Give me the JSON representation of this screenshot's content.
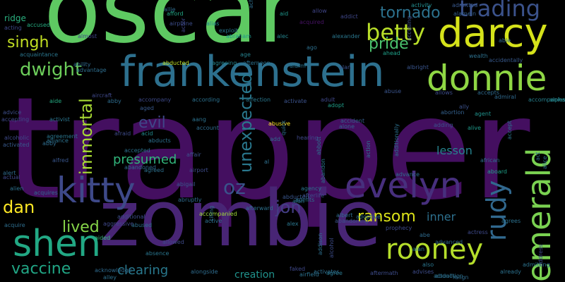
{
  "cloud": {
    "words": [
      {
        "text": "trapper",
        "color": "#440f60"
      },
      {
        "text": "oscar",
        "color": "#5ec962"
      },
      {
        "text": "zombie",
        "color": "#482575"
      },
      {
        "text": "frankenstein",
        "color": "#2d708e"
      },
      {
        "text": "darcy",
        "color": "#d5e21a"
      },
      {
        "text": "donnie",
        "color": "#8fd744"
      },
      {
        "text": "kitty",
        "color": "#3e4989"
      },
      {
        "text": "evelyn",
        "color": "#472f7d"
      },
      {
        "text": "shen",
        "color": "#22a884"
      },
      {
        "text": "emerald",
        "color": "#7ad151"
      },
      {
        "text": "rooney",
        "color": "#b5de2b"
      },
      {
        "text": "rudy",
        "color": "#31688e"
      },
      {
        "text": "betty",
        "color": "#b8de29"
      },
      {
        "text": "trading",
        "color": "#3b528b"
      },
      {
        "text": "tornado",
        "color": "#2c728e"
      },
      {
        "text": "pride",
        "color": "#4ac16d"
      },
      {
        "text": "dwight",
        "color": "#6ccd5a"
      },
      {
        "text": "singh",
        "color": "#c2df23"
      },
      {
        "text": "immortal",
        "color": "#a8db34"
      },
      {
        "text": "unexpected",
        "color": "#2a788e"
      },
      {
        "text": "evil",
        "color": "#404688"
      },
      {
        "text": "oz",
        "color": "#3a548c"
      },
      {
        "text": "jon",
        "color": "#433e85"
      },
      {
        "text": "ransom",
        "color": "#dce319"
      },
      {
        "text": "dan",
        "color": "#fde725"
      },
      {
        "text": "lived",
        "color": "#86d549"
      },
      {
        "text": "vaccine",
        "color": "#21a685"
      },
      {
        "text": "presumed",
        "color": "#31b57b"
      },
      {
        "text": "lesson",
        "color": "#26828e"
      },
      {
        "text": "inner",
        "color": "#2d708e"
      },
      {
        "text": "clearing",
        "color": "#29798e"
      },
      {
        "text": "creation",
        "color": "#20928c"
      },
      {
        "text": "ridge",
        "color": "#2ab07f"
      },
      {
        "text": "allow",
        "color": "#404588"
      },
      {
        "text": "allie",
        "color": "#2f6c8e"
      },
      {
        "text": "activity",
        "color": "#228c8d"
      },
      {
        "text": "admitted",
        "color": "#38588c"
      },
      {
        "text": "alamein",
        "color": "#355f8d"
      },
      {
        "text": "aid",
        "color": "#1f968b"
      },
      {
        "text": "acting",
        "color": "#3e4a89"
      },
      {
        "text": "accused",
        "color": "#26ad81"
      },
      {
        "text": "airplane",
        "color": "#3d4d8a"
      },
      {
        "text": "afford",
        "color": "#22a785"
      },
      {
        "text": "alias",
        "color": "#24868e"
      },
      {
        "text": "exploit",
        "color": "#2a768e"
      },
      {
        "text": "abraham",
        "color": "#1f988b"
      },
      {
        "text": "alec",
        "color": "#25858e"
      },
      {
        "text": "acquired",
        "color": "#471365"
      },
      {
        "text": "addict",
        "color": "#3f4788"
      },
      {
        "text": "alexander",
        "color": "#2a778e"
      },
      {
        "text": "able",
        "color": "#306a8e"
      },
      {
        "text": "wealth",
        "color": "#2d718e"
      },
      {
        "text": "acquaintance",
        "color": "#2a768e"
      },
      {
        "text": "almost",
        "color": "#3f4889"
      },
      {
        "text": "ability",
        "color": "#306a8e"
      },
      {
        "text": "advantage",
        "color": "#2e6e8e"
      },
      {
        "text": "actor",
        "color": "#3f4788"
      },
      {
        "text": "age",
        "color": "#26828e"
      },
      {
        "text": "alarm",
        "color": "#2b748e"
      },
      {
        "text": "alan",
        "color": "#3b528b"
      },
      {
        "text": "albright",
        "color": "#39558c"
      },
      {
        "text": "ahead",
        "color": "#1fa088"
      },
      {
        "text": "accusing",
        "color": "#3c4f8a"
      },
      {
        "text": "accidentally",
        "color": "#38598c"
      },
      {
        "text": "abducted",
        "color": "#c0df25"
      },
      {
        "text": "agreeing",
        "color": "#25848e"
      },
      {
        "text": "aircraft",
        "color": "#3f4889"
      },
      {
        "text": "aide",
        "color": "#25ab82"
      },
      {
        "text": "abby",
        "color": "#2e6d8e"
      },
      {
        "text": "accompany",
        "color": "#3e4a89"
      },
      {
        "text": "according",
        "color": "#2c718e"
      },
      {
        "text": "affection",
        "color": "#2a788e"
      },
      {
        "text": "activate",
        "color": "#3b528b"
      },
      {
        "text": "adult",
        "color": "#3f4788"
      },
      {
        "text": "adopt",
        "color": "#1f9e89"
      },
      {
        "text": "abuse",
        "color": "#3a548c"
      },
      {
        "text": "allows",
        "color": "#3d4d8a"
      },
      {
        "text": "accepts",
        "color": "#2f6b8e"
      },
      {
        "text": "admiral",
        "color": "#306a8e"
      },
      {
        "text": "accompanies",
        "color": "#27808e"
      },
      {
        "text": "alpha",
        "color": "#23898e"
      },
      {
        "text": "aged",
        "color": "#38598c"
      },
      {
        "text": "accepting",
        "color": "#3e4989"
      },
      {
        "text": "activist",
        "color": "#2b758e"
      },
      {
        "text": "aang",
        "color": "#2c728e"
      },
      {
        "text": "account",
        "color": "#2f6c8e"
      },
      {
        "text": "abusive",
        "color": "#fde725"
      },
      {
        "text": "add",
        "color": "#2f6b8e"
      },
      {
        "text": "quick",
        "color": "#2e6f8e"
      },
      {
        "text": "abbott",
        "color": "#2b748e"
      },
      {
        "text": "accident",
        "color": "#355f8d"
      },
      {
        "text": "alone",
        "color": "#34618d"
      },
      {
        "text": "action",
        "color": "#2c738e"
      },
      {
        "text": "abortion",
        "color": "#34618d"
      },
      {
        "text": "adding",
        "color": "#3a548c"
      },
      {
        "text": "ally",
        "color": "#3b518b"
      },
      {
        "text": "agent",
        "color": "#20928c"
      },
      {
        "text": "alive",
        "color": "#1f9a8a"
      },
      {
        "text": "accept",
        "color": "#2c738e"
      },
      {
        "text": "alcoholic",
        "color": "#3e4a89"
      },
      {
        "text": "agreement",
        "color": "#2a768e"
      },
      {
        "text": "alliance",
        "color": "#2c728e"
      },
      {
        "text": "activated",
        "color": "#38598c"
      },
      {
        "text": "afraid",
        "color": "#3e4c8a"
      },
      {
        "text": "acid",
        "color": "#228b8d"
      },
      {
        "text": "abducts",
        "color": "#2d708e"
      },
      {
        "text": "accepted",
        "color": "#2c718e"
      },
      {
        "text": "affair",
        "color": "#3b528b"
      },
      {
        "text": "al",
        "color": "#2e6f8e"
      },
      {
        "text": "abby",
        "color": "#2f6c8e"
      },
      {
        "text": "alfred",
        "color": "#39568c"
      },
      {
        "text": "abandoned",
        "color": "#31688e"
      },
      {
        "text": "agreed",
        "color": "#2d718e"
      },
      {
        "text": "airport",
        "color": "#3e4c8a"
      },
      {
        "text": "abigail",
        "color": "#38588c"
      },
      {
        "text": "additionally",
        "color": "#2c718e"
      },
      {
        "text": "advance",
        "color": "#2e6f8e"
      },
      {
        "text": "african",
        "color": "#2e6e8e"
      },
      {
        "text": "aboard",
        "color": "#1fa188"
      },
      {
        "text": "act",
        "color": "#2f6c8e"
      },
      {
        "text": "alice",
        "color": "#2e6e8e"
      },
      {
        "text": "alert",
        "color": "#2f6c8e"
      },
      {
        "text": "actual",
        "color": "#3f4889"
      },
      {
        "text": "alien",
        "color": "#2d718e"
      },
      {
        "text": "acquires",
        "color": "#31688e"
      },
      {
        "text": "abandon",
        "color": "#2a788e"
      },
      {
        "text": "agency",
        "color": "#2a768e"
      },
      {
        "text": "afterlife",
        "color": "#3e4c8a"
      },
      {
        "text": "abducted",
        "color": "#39568c"
      },
      {
        "text": "alan",
        "color": "#2c718e"
      },
      {
        "text": "admits",
        "color": "#2d708e"
      },
      {
        "text": "abruptly",
        "color": "#2f6c8e"
      },
      {
        "text": "afterward",
        "color": "#2d708e"
      },
      {
        "text": "abe",
        "color": "#2f6b8e"
      },
      {
        "text": "advanced",
        "color": "#31688e"
      },
      {
        "text": "alan",
        "color": "#2a778e"
      },
      {
        "text": "accompanied",
        "color": "#a0da39"
      },
      {
        "text": "additional",
        "color": "#3d4e8a"
      },
      {
        "text": "aggressive",
        "color": "#3f4889"
      },
      {
        "text": "aided",
        "color": "#35b779"
      },
      {
        "text": "abandoning",
        "color": "#3b528b"
      },
      {
        "text": "albert",
        "color": "#2f6c8e"
      },
      {
        "text": "alex",
        "color": "#2a768e"
      },
      {
        "text": "adoptive",
        "color": "#2e6e8e"
      },
      {
        "text": "prophecy",
        "color": "#3e4a89"
      },
      {
        "text": "actress",
        "color": "#3e4989"
      },
      {
        "text": "agrees",
        "color": "#2c718e"
      },
      {
        "text": "acquire",
        "color": "#2e6e8e"
      },
      {
        "text": "abused",
        "color": "#2d708e"
      },
      {
        "text": "active",
        "color": "#2d708e"
      },
      {
        "text": "citing",
        "color": "#2f6c8e"
      },
      {
        "text": "addison",
        "color": "#2d708e"
      },
      {
        "text": "alcohol",
        "color": "#3d4d8a"
      },
      {
        "text": "also",
        "color": "#2a768e"
      },
      {
        "text": "advises",
        "color": "#3e4c8a"
      },
      {
        "text": "actually",
        "color": "#2d708e"
      },
      {
        "text": "admitting",
        "color": "#2c728e"
      },
      {
        "text": "address",
        "color": "#3e4a89"
      },
      {
        "text": "acknowledge",
        "color": "#2f6b8e"
      },
      {
        "text": "alley",
        "color": "#2d708e"
      },
      {
        "text": "alongside",
        "color": "#2f6c8e"
      },
      {
        "text": "faked",
        "color": "#3f4889"
      },
      {
        "text": "activates",
        "color": "#2e6e8e"
      },
      {
        "text": "airfield",
        "color": "#2c718e"
      },
      {
        "text": "agree",
        "color": "#2a778e"
      },
      {
        "text": "aftermath",
        "color": "#3e4c8a"
      },
      {
        "text": "already",
        "color": "#2c718e"
      },
      {
        "text": "align",
        "color": "#2f6b8e"
      },
      {
        "text": "abduction",
        "color": "#2d708e"
      },
      {
        "text": "hearing",
        "color": "#3f4889"
      },
      {
        "text": "achieve",
        "color": "#2e6e8e"
      },
      {
        "text": "afternoon",
        "color": "#2c718e"
      },
      {
        "text": "allowed",
        "color": "#3e4a89"
      },
      {
        "text": "absence",
        "color": "#2a768e"
      },
      {
        "text": "ago",
        "color": "#2d708e"
      },
      {
        "text": "advice",
        "color": "#3d4e8a"
      },
      {
        "text": "all",
        "color": "#2f6b8e"
      },
      {
        "text": "adam",
        "color": "#2c718e"
      },
      {
        "text": "admit",
        "color": "#2c718e"
      }
    ]
  }
}
